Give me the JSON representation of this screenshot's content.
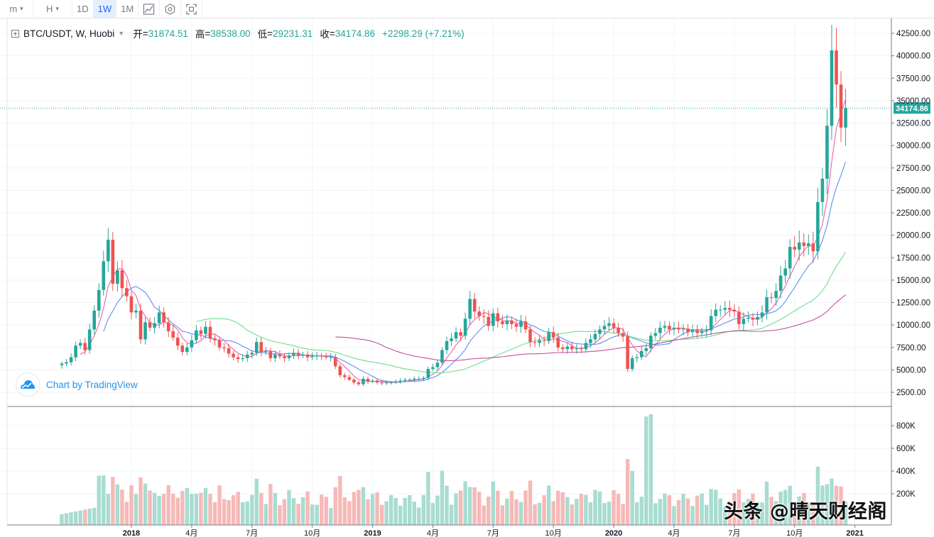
{
  "toolbar": {
    "items": [
      {
        "label": "m",
        "caret": "▾"
      },
      {
        "label": "H",
        "caret": "▾"
      },
      {
        "label": "1D"
      },
      {
        "label": "1W",
        "active": true
      },
      {
        "label": "1M"
      }
    ],
    "icons": [
      "chart-style-icon",
      "indicators-icon",
      "fullscreen-icon"
    ]
  },
  "legend": {
    "symbol": "BTC/USDT, W, Huobi",
    "open_label": "开",
    "open": "31874.51",
    "high_label": "高",
    "high": "38538.00",
    "low_label": "低",
    "low": "29231.31",
    "close_label": "收",
    "close": "34174.86",
    "change": "+2298.29 (+7.21%)"
  },
  "branding": {
    "text": "Chart by TradingView"
  },
  "watermark": {
    "text": "头条 @晴天财经阁"
  },
  "colors": {
    "up": "#26a69a",
    "down": "#ef5350",
    "up_vol": "#a8dcd0",
    "down_vol": "#f6b9b7",
    "ma1": "#f25ea8",
    "ma2": "#5b8ff0",
    "ma3": "#6ee08a",
    "ma4": "#c2509a",
    "last_price": "#26a69a"
  },
  "chart_data": {
    "type": "candlestick",
    "title": "BTC/USDT, W, Huobi",
    "price_axis": {
      "ticks": [
        2500,
        5000,
        7500,
        10000,
        12500,
        15000,
        17500,
        20000,
        22500,
        25000,
        27500,
        30000,
        32500,
        35000,
        37500,
        40000,
        42500
      ],
      "tick_labels": [
        "2500.00",
        "5000.00",
        "7500.00",
        "10000.00",
        "12500.00",
        "15000.00",
        "17500.00",
        "20000.00",
        "22500.00",
        "25000.00",
        "27500.00",
        "30000.00",
        "32500.00",
        "35000.00",
        "37500.00",
        "40000.00",
        "42500.00"
      ],
      "range": [
        0,
        44000
      ]
    },
    "volume_axis": {
      "ticks": [
        200000,
        400000,
        600000,
        800000
      ],
      "tick_labels": [
        "200K",
        "400K",
        "600K",
        "800K"
      ],
      "range": [
        0,
        960000
      ]
    },
    "time_axis": {
      "labels": [
        {
          "text": "2018",
          "week": 15
        },
        {
          "text": "4月",
          "week": 28
        },
        {
          "text": "7月",
          "week": 41
        },
        {
          "text": "10月",
          "week": 54
        },
        {
          "text": "2019",
          "week": 67
        },
        {
          "text": "4月",
          "week": 80
        },
        {
          "text": "7月",
          "week": 93
        },
        {
          "text": "10月",
          "week": 106
        },
        {
          "text": "2020",
          "week": 119
        },
        {
          "text": "4月",
          "week": 132
        },
        {
          "text": "7月",
          "week": 145
        },
        {
          "text": "10月",
          "week": 158
        },
        {
          "text": "2021",
          "week": 171
        }
      ]
    },
    "last_price": 34174.86,
    "last_price_label": "34174.86",
    "closes": [
      5700,
      5850,
      6400,
      7700,
      8000,
      7200,
      9500,
      11600,
      13900,
      17100,
      19500,
      14600,
      16100,
      14100,
      13200,
      11400,
      11600,
      8400,
      10300,
      9700,
      10200,
      11400,
      10300,
      9300,
      8600,
      7700,
      7000,
      7500,
      8300,
      9400,
      9000,
      9800,
      8500,
      8300,
      7500,
      7400,
      6800,
      6400,
      6200,
      6300,
      6700,
      6900,
      8100,
      7000,
      7100,
      6300,
      6700,
      6500,
      6300,
      6600,
      6900,
      6600,
      6700,
      6400,
      6500,
      6600,
      6500,
      6400,
      6400,
      5400,
      4400,
      4200,
      3900,
      3600,
      3400,
      4000,
      3700,
      3800,
      3600,
      3500,
      3600,
      3600,
      3700,
      3800,
      3900,
      3900,
      4000,
      4000,
      4100,
      5100,
      5300,
      5800,
      7200,
      8200,
      8500,
      9200,
      8800,
      10700,
      12900,
      11500,
      11000,
      10900,
      9900,
      11300,
      10400,
      10100,
      10500,
      10100,
      9800,
      10400,
      9500,
      8100,
      8000,
      8300,
      8200,
      9200,
      8600,
      7500,
      7300,
      7600,
      7300,
      7400,
      7300,
      8000,
      8400,
      9000,
      9500,
      9900,
      10200,
      9700,
      9100,
      8700,
      5100,
      6300,
      6400,
      7100,
      7400,
      8800,
      9100,
      9700,
      9900,
      9500,
      9700,
      9500,
      9600,
      9200,
      9400,
      9100,
      9300,
      9400,
      11000,
      11700,
      11700,
      11900,
      11700,
      11500,
      10100,
      10700,
      10800,
      10600,
      10900,
      11400,
      13100,
      13000,
      13800,
      15500,
      16300,
      18700,
      18400,
      19200,
      18800,
      19100,
      18200,
      23700,
      26300,
      32200,
      40600,
      36800,
      32000,
      34175
    ]
  }
}
